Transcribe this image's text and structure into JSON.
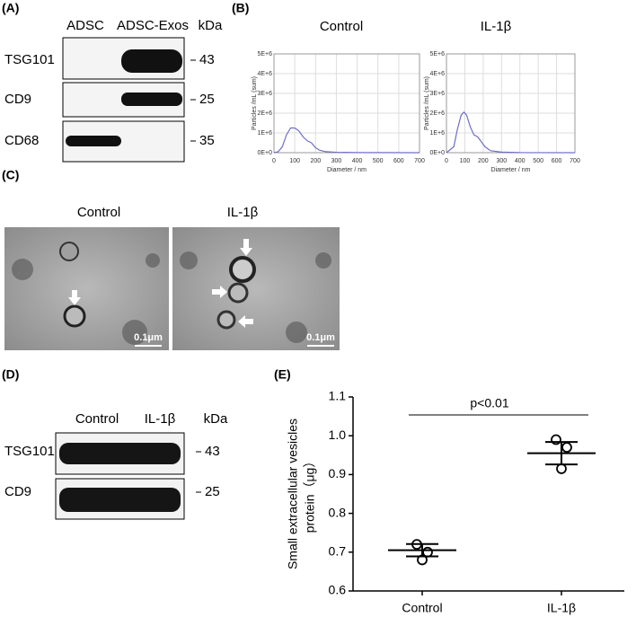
{
  "panel_labels": [
    "(A)",
    "(B)",
    "(C)",
    "(D)",
    "(E)"
  ],
  "blot_a": {
    "lanes": [
      "ADSC",
      "ADSC-Exos"
    ],
    "unit": "kDa",
    "rows": [
      {
        "name": "TSG101",
        "kda": 43
      },
      {
        "name": "CD9",
        "kda": 25
      },
      {
        "name": "CD68",
        "kda": 35
      }
    ]
  },
  "tem": {
    "titles": [
      "Control",
      "IL-1β"
    ],
    "scale_bar": "0.1μm"
  },
  "blot_d": {
    "lanes": [
      "Control",
      "IL-1β"
    ],
    "unit": "kDa",
    "rows": [
      {
        "name": "TSG101",
        "kda": 43
      },
      {
        "name": "CD9",
        "kda": 25
      }
    ]
  },
  "chart_data": [
    {
      "type": "line",
      "title": "Control",
      "ylabel": "Particles /mL (sum)",
      "xlabel": "Diameter / nm",
      "x": [
        0,
        20,
        40,
        60,
        80,
        100,
        120,
        140,
        160,
        180,
        200,
        220,
        250,
        300,
        400,
        700
      ],
      "series": [
        {
          "color": "#6f6fc8",
          "values": [
            0,
            50000,
            300000,
            900000,
            1250000,
            1250000,
            1100000,
            800000,
            600000,
            500000,
            250000,
            120000,
            50000,
            20000,
            5000,
            0
          ]
        }
      ],
      "xlim": [
        0,
        700
      ],
      "ylim": [
        0,
        5000000
      ],
      "xticks": [
        0,
        100,
        200,
        300,
        400,
        500,
        600,
        700
      ],
      "yticks": [
        {
          "value": 0,
          "label": "0E+0"
        },
        {
          "value": 1000000,
          "label": "1E+6"
        },
        {
          "value": 2000000,
          "label": "2E+6"
        },
        {
          "value": 3000000,
          "label": "3E+6"
        },
        {
          "value": 4000000,
          "label": "4E+6"
        },
        {
          "value": 5000000,
          "label": "5E+6"
        }
      ],
      "grid": true
    },
    {
      "type": "line",
      "title": "IL-1β",
      "ylabel": "Particles /mL (sum)",
      "xlabel": "Diameter / nm",
      "x": [
        0,
        40,
        60,
        80,
        95,
        110,
        130,
        150,
        170,
        190,
        210,
        240,
        300,
        400,
        700
      ],
      "series": [
        {
          "color": "#6f6fc8",
          "values": [
            0,
            300000,
            1200000,
            1900000,
            2050000,
            1900000,
            1300000,
            900000,
            800000,
            550000,
            300000,
            100000,
            30000,
            5000,
            0
          ]
        }
      ],
      "xlim": [
        0,
        700
      ],
      "ylim": [
        0,
        5000000
      ],
      "xticks": [
        0,
        100,
        200,
        300,
        400,
        500,
        600,
        700
      ],
      "yticks": [
        {
          "value": 0,
          "label": "0E+0"
        },
        {
          "value": 1000000,
          "label": "1E+6"
        },
        {
          "value": 2000000,
          "label": "2E+6"
        },
        {
          "value": 3000000,
          "label": "3E+6"
        },
        {
          "value": 4000000,
          "label": "4E+6"
        },
        {
          "value": 5000000,
          "label": "5E+6"
        }
      ],
      "grid": true
    },
    {
      "type": "scatter",
      "categories": [
        "Control",
        "IL-1β"
      ],
      "values": [
        [
          0.72,
          0.7,
          0.68
        ],
        [
          0.99,
          0.97,
          0.915
        ]
      ],
      "means": [
        0.705,
        0.955
      ],
      "errors": [
        0.016,
        0.029
      ],
      "ylabel": [
        "Small extracellular vesicles",
        "protein（μg）"
      ],
      "annotation": "p<0.01",
      "ylim": [
        0.6,
        1.1
      ],
      "yticks": [
        0.6,
        0.7,
        0.8,
        0.9,
        {
          "value": 1,
          "label": "1.0"
        },
        1.1
      ],
      "color": "#000000"
    }
  ]
}
